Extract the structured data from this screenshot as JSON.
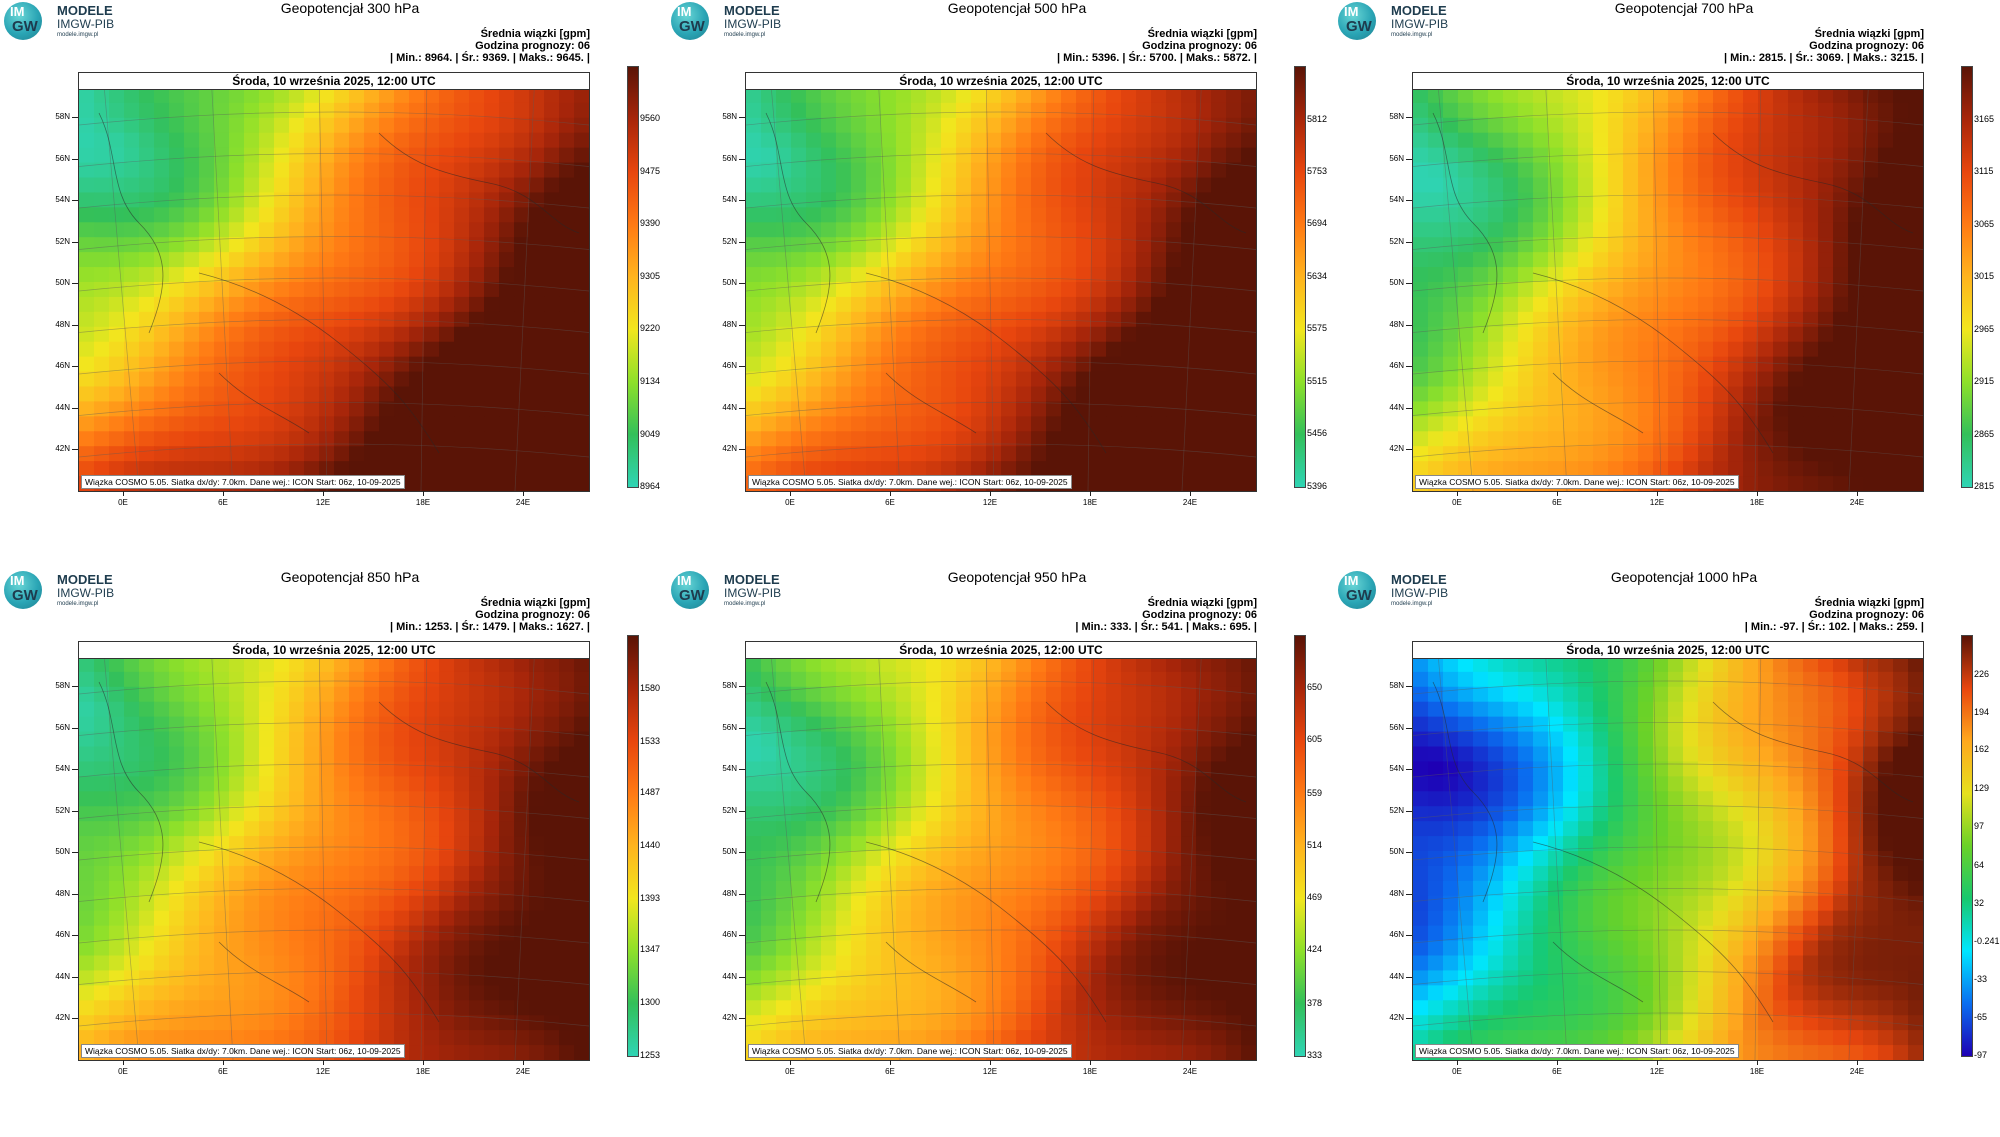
{
  "logo": {
    "circle_top": "IM",
    "circle_bottom": "GW",
    "line1": "MODELE",
    "line2": "IMGW-PIB",
    "line3": "modele.imgw.pl"
  },
  "common": {
    "units_line": "Średnia wiązki [gpm]",
    "forecast_hour_line": "Godzina prognozy: 06",
    "date_line": "Środa, 10 września 2025, 12:00 UTC",
    "footer": "Wiązka COSMO 5.05. Siatka dx/dy: 7.0km. Dane wej.: ICON Start: 06z, 10-09-2025",
    "lat_labels": [
      "58N",
      "56N",
      "54N",
      "52N",
      "50N",
      "48N",
      "46N",
      "44N",
      "42N"
    ],
    "lon_labels": [
      "0E",
      "6E",
      "12E",
      "18E",
      "24E"
    ]
  },
  "colors": {
    "map_low": "#00c8b4",
    "map_mid": "#f2e61e",
    "map_high": "#8a1e08",
    "bar_low": "#1e00b4",
    "bar_high": "#5a1406"
  },
  "chart_data": [
    {
      "type": "heatmap",
      "title": "Geopotencjał 300 hPa",
      "stats": "| Min.: 8964. | Śr.: 9369. | Maks.: 9645. |",
      "min": 8964,
      "mean": 9369,
      "max": 9645,
      "colorbar_ticks": [
        "9560",
        "9475",
        "9390",
        "9305",
        "9220",
        "9134",
        "9049",
        "8964"
      ],
      "scheme": "warm",
      "field": {
        "low_center": [
          0.08,
          0.18
        ],
        "high_center": [
          0.85,
          0.9
        ],
        "high_dir": [
          0.7,
          0.6
        ]
      }
    },
    {
      "type": "heatmap",
      "title": "Geopotencjał 500 hPa",
      "stats": "| Min.: 5396. | Śr.: 5700. | Maks.: 5872. |",
      "min": 5396,
      "mean": 5700,
      "max": 5872,
      "colorbar_ticks": [
        "5812",
        "5753",
        "5694",
        "5634",
        "5575",
        "5515",
        "5456",
        "5396"
      ],
      "scheme": "warm",
      "field": {
        "low_center": [
          0.05,
          0.2
        ],
        "high_center": [
          0.9,
          0.85
        ],
        "high_dir": [
          0.75,
          0.55
        ]
      }
    },
    {
      "type": "heatmap",
      "title": "Geopotencjał 700 hPa",
      "stats": "| Min.: 2815. | Śr.: 3069. | Maks.: 3215. |",
      "min": 2815,
      "mean": 3069,
      "max": 3215,
      "colorbar_ticks": [
        "3165",
        "3115",
        "3065",
        "3015",
        "2965",
        "2915",
        "2865",
        "2815"
      ],
      "scheme": "warm",
      "field": {
        "low_center": [
          0.05,
          0.25
        ],
        "high_center": [
          0.95,
          0.1
        ],
        "high_dir": [
          0.85,
          0.3
        ]
      }
    },
    {
      "type": "heatmap",
      "title": "Geopotencjał 850 hPa",
      "stats": "| Min.: 1253. | Śr.: 1479. | Maks.: 1627. |",
      "min": 1253,
      "mean": 1479,
      "max": 1627,
      "colorbar_ticks": [
        "1580",
        "1533",
        "1487",
        "1440",
        "1393",
        "1347",
        "1300",
        "1253"
      ],
      "scheme": "warm",
      "field": {
        "low_center": [
          0.03,
          0.15
        ],
        "high_center": [
          0.95,
          0.15
        ],
        "high_dir": [
          0.95,
          0.2
        ]
      }
    },
    {
      "type": "heatmap",
      "title": "Geopotencjał 950 hPa",
      "stats": "| Min.: 333. | Śr.: 541. | Maks.: 695. |",
      "min": 333,
      "mean": 541,
      "max": 695,
      "colorbar_ticks": [
        "650",
        "605",
        "559",
        "514",
        "469",
        "424",
        "378",
        "333"
      ],
      "scheme": "warm",
      "field": {
        "low_center": [
          0.03,
          0.25
        ],
        "high_center": [
          0.95,
          0.2
        ],
        "high_dir": [
          0.95,
          0.25
        ]
      }
    },
    {
      "type": "heatmap",
      "title": "Geopotencjał 1000 hPa",
      "stats": "| Min.: -97. | Śr.: 102. | Maks.: 259. |",
      "min": -97,
      "mean": 102,
      "max": 259,
      "colorbar_ticks": [
        "226",
        "194",
        "162",
        "129",
        "97",
        "64",
        "32",
        "-0.241",
        "-33",
        "-65",
        "-97"
      ],
      "scheme": "full",
      "field": {
        "low_center": [
          0.05,
          0.3
        ],
        "high_center": [
          0.95,
          0.2
        ],
        "high_dir": [
          0.95,
          0.2
        ]
      }
    }
  ]
}
